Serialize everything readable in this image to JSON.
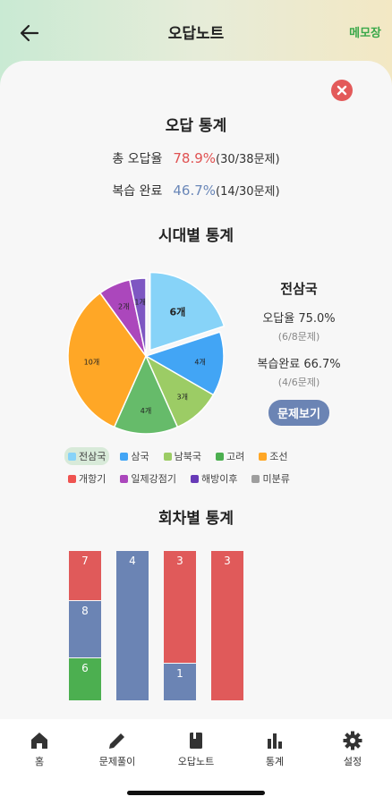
{
  "header": {
    "title": "오답노트",
    "memo_label": "메모장"
  },
  "summary": {
    "title": "오답 통계",
    "wrong": {
      "label": "총 오답율",
      "pct": "78.9%",
      "count": "(30/38문제)"
    },
    "review": {
      "label": "복습 완료",
      "pct": "46.7%",
      "count": "(14/30문제)"
    }
  },
  "era": {
    "title": "시대별 통계",
    "slices": [
      {
        "label": "6개",
        "value": 6,
        "color": "#87d3f8"
      },
      {
        "label": "4개",
        "value": 4,
        "color": "#42a5f5"
      },
      {
        "label": "3개",
        "value": 3,
        "color": "#9ccc65"
      },
      {
        "label": "4개",
        "value": 4,
        "color": "#66bb6a"
      },
      {
        "label": "10개",
        "value": 10,
        "color": "#ffa726"
      },
      {
        "label": "2개",
        "value": 2,
        "color": "#ab47bc"
      },
      {
        "label": "1개",
        "value": 1,
        "color": "#7e57c2"
      }
    ],
    "selected": {
      "name": "전삼국",
      "wrong_rate": "오답율 75.0%",
      "wrong_sub": "(6/8문제)",
      "review_rate": "복습완료 66.7%",
      "review_sub": "(4/6문제)",
      "button": "문제보기"
    },
    "legend": [
      [
        {
          "label": "전삼국",
          "color": "#87d3f8",
          "active": true
        },
        {
          "label": "삼국",
          "color": "#42a5f5"
        },
        {
          "label": "남북국",
          "color": "#9ccc65"
        },
        {
          "label": "고려",
          "color": "#4caf50"
        },
        {
          "label": "조선",
          "color": "#ffa726"
        }
      ],
      [
        {
          "label": "개항기",
          "color": "#ef5350"
        },
        {
          "label": "일제강점기",
          "color": "#ab47bc"
        },
        {
          "label": "해방이후",
          "color": "#673ab7"
        },
        {
          "label": "미분류",
          "color": "#9e9e9e"
        }
      ]
    ]
  },
  "rounds": {
    "title": "회차별 통계",
    "colors": {
      "red": "#e05a5a",
      "blue": "#6b84b4",
      "green": "#4caf50"
    },
    "bars": [
      {
        "segments": [
          {
            "value": 7,
            "color": "red"
          },
          {
            "value": 8,
            "color": "blue"
          },
          {
            "value": 6,
            "color": "green"
          }
        ]
      },
      {
        "segments": [
          {
            "value": 4,
            "color": "blue"
          }
        ]
      },
      {
        "segments": [
          {
            "value": 3,
            "color": "red"
          },
          {
            "value": 1,
            "color": "blue"
          }
        ]
      },
      {
        "segments": [
          {
            "value": 3,
            "color": "red"
          }
        ]
      }
    ]
  },
  "tabbar": {
    "items": [
      {
        "label": "홈",
        "icon": "home-icon"
      },
      {
        "label": "문제풀이",
        "icon": "pencil-icon"
      },
      {
        "label": "오답노트",
        "icon": "notebook-icon"
      },
      {
        "label": "통계",
        "icon": "bar-chart-icon"
      },
      {
        "label": "설정",
        "icon": "gear-icon"
      }
    ]
  }
}
